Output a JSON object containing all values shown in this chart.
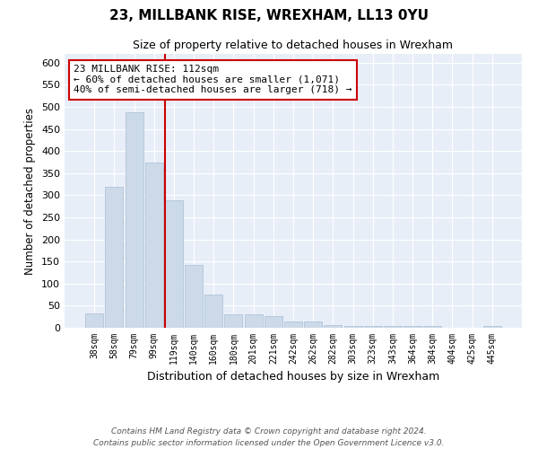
{
  "title": "23, MILLBANK RISE, WREXHAM, LL13 0YU",
  "subtitle": "Size of property relative to detached houses in Wrexham",
  "xlabel": "Distribution of detached houses by size in Wrexham",
  "ylabel": "Number of detached properties",
  "categories": [
    "38sqm",
    "58sqm",
    "79sqm",
    "99sqm",
    "119sqm",
    "140sqm",
    "160sqm",
    "180sqm",
    "201sqm",
    "221sqm",
    "242sqm",
    "262sqm",
    "282sqm",
    "303sqm",
    "323sqm",
    "343sqm",
    "364sqm",
    "384sqm",
    "404sqm",
    "425sqm",
    "445sqm"
  ],
  "values": [
    32,
    320,
    487,
    375,
    289,
    142,
    75,
    30,
    30,
    27,
    14,
    14,
    7,
    5,
    5,
    5,
    5,
    4,
    0,
    0,
    5
  ],
  "bar_color": "#ccd9e8",
  "bar_edge_color": "#a8bfd4",
  "vline_color": "#cc0000",
  "vline_x_index": 3.57,
  "annotation_text": "23 MILLBANK RISE: 112sqm\n← 60% of detached houses are smaller (1,071)\n40% of semi-detached houses are larger (718) →",
  "annotation_box_color": "#ffffff",
  "annotation_box_edge": "#cc0000",
  "background_color": "#e8eef8",
  "footer_line1": "Contains HM Land Registry data © Crown copyright and database right 2024.",
  "footer_line2": "Contains public sector information licensed under the Open Government Licence v3.0.",
  "ylim": [
    0,
    620
  ],
  "yticks": [
    0,
    50,
    100,
    150,
    200,
    250,
    300,
    350,
    400,
    450,
    500,
    550,
    600
  ]
}
